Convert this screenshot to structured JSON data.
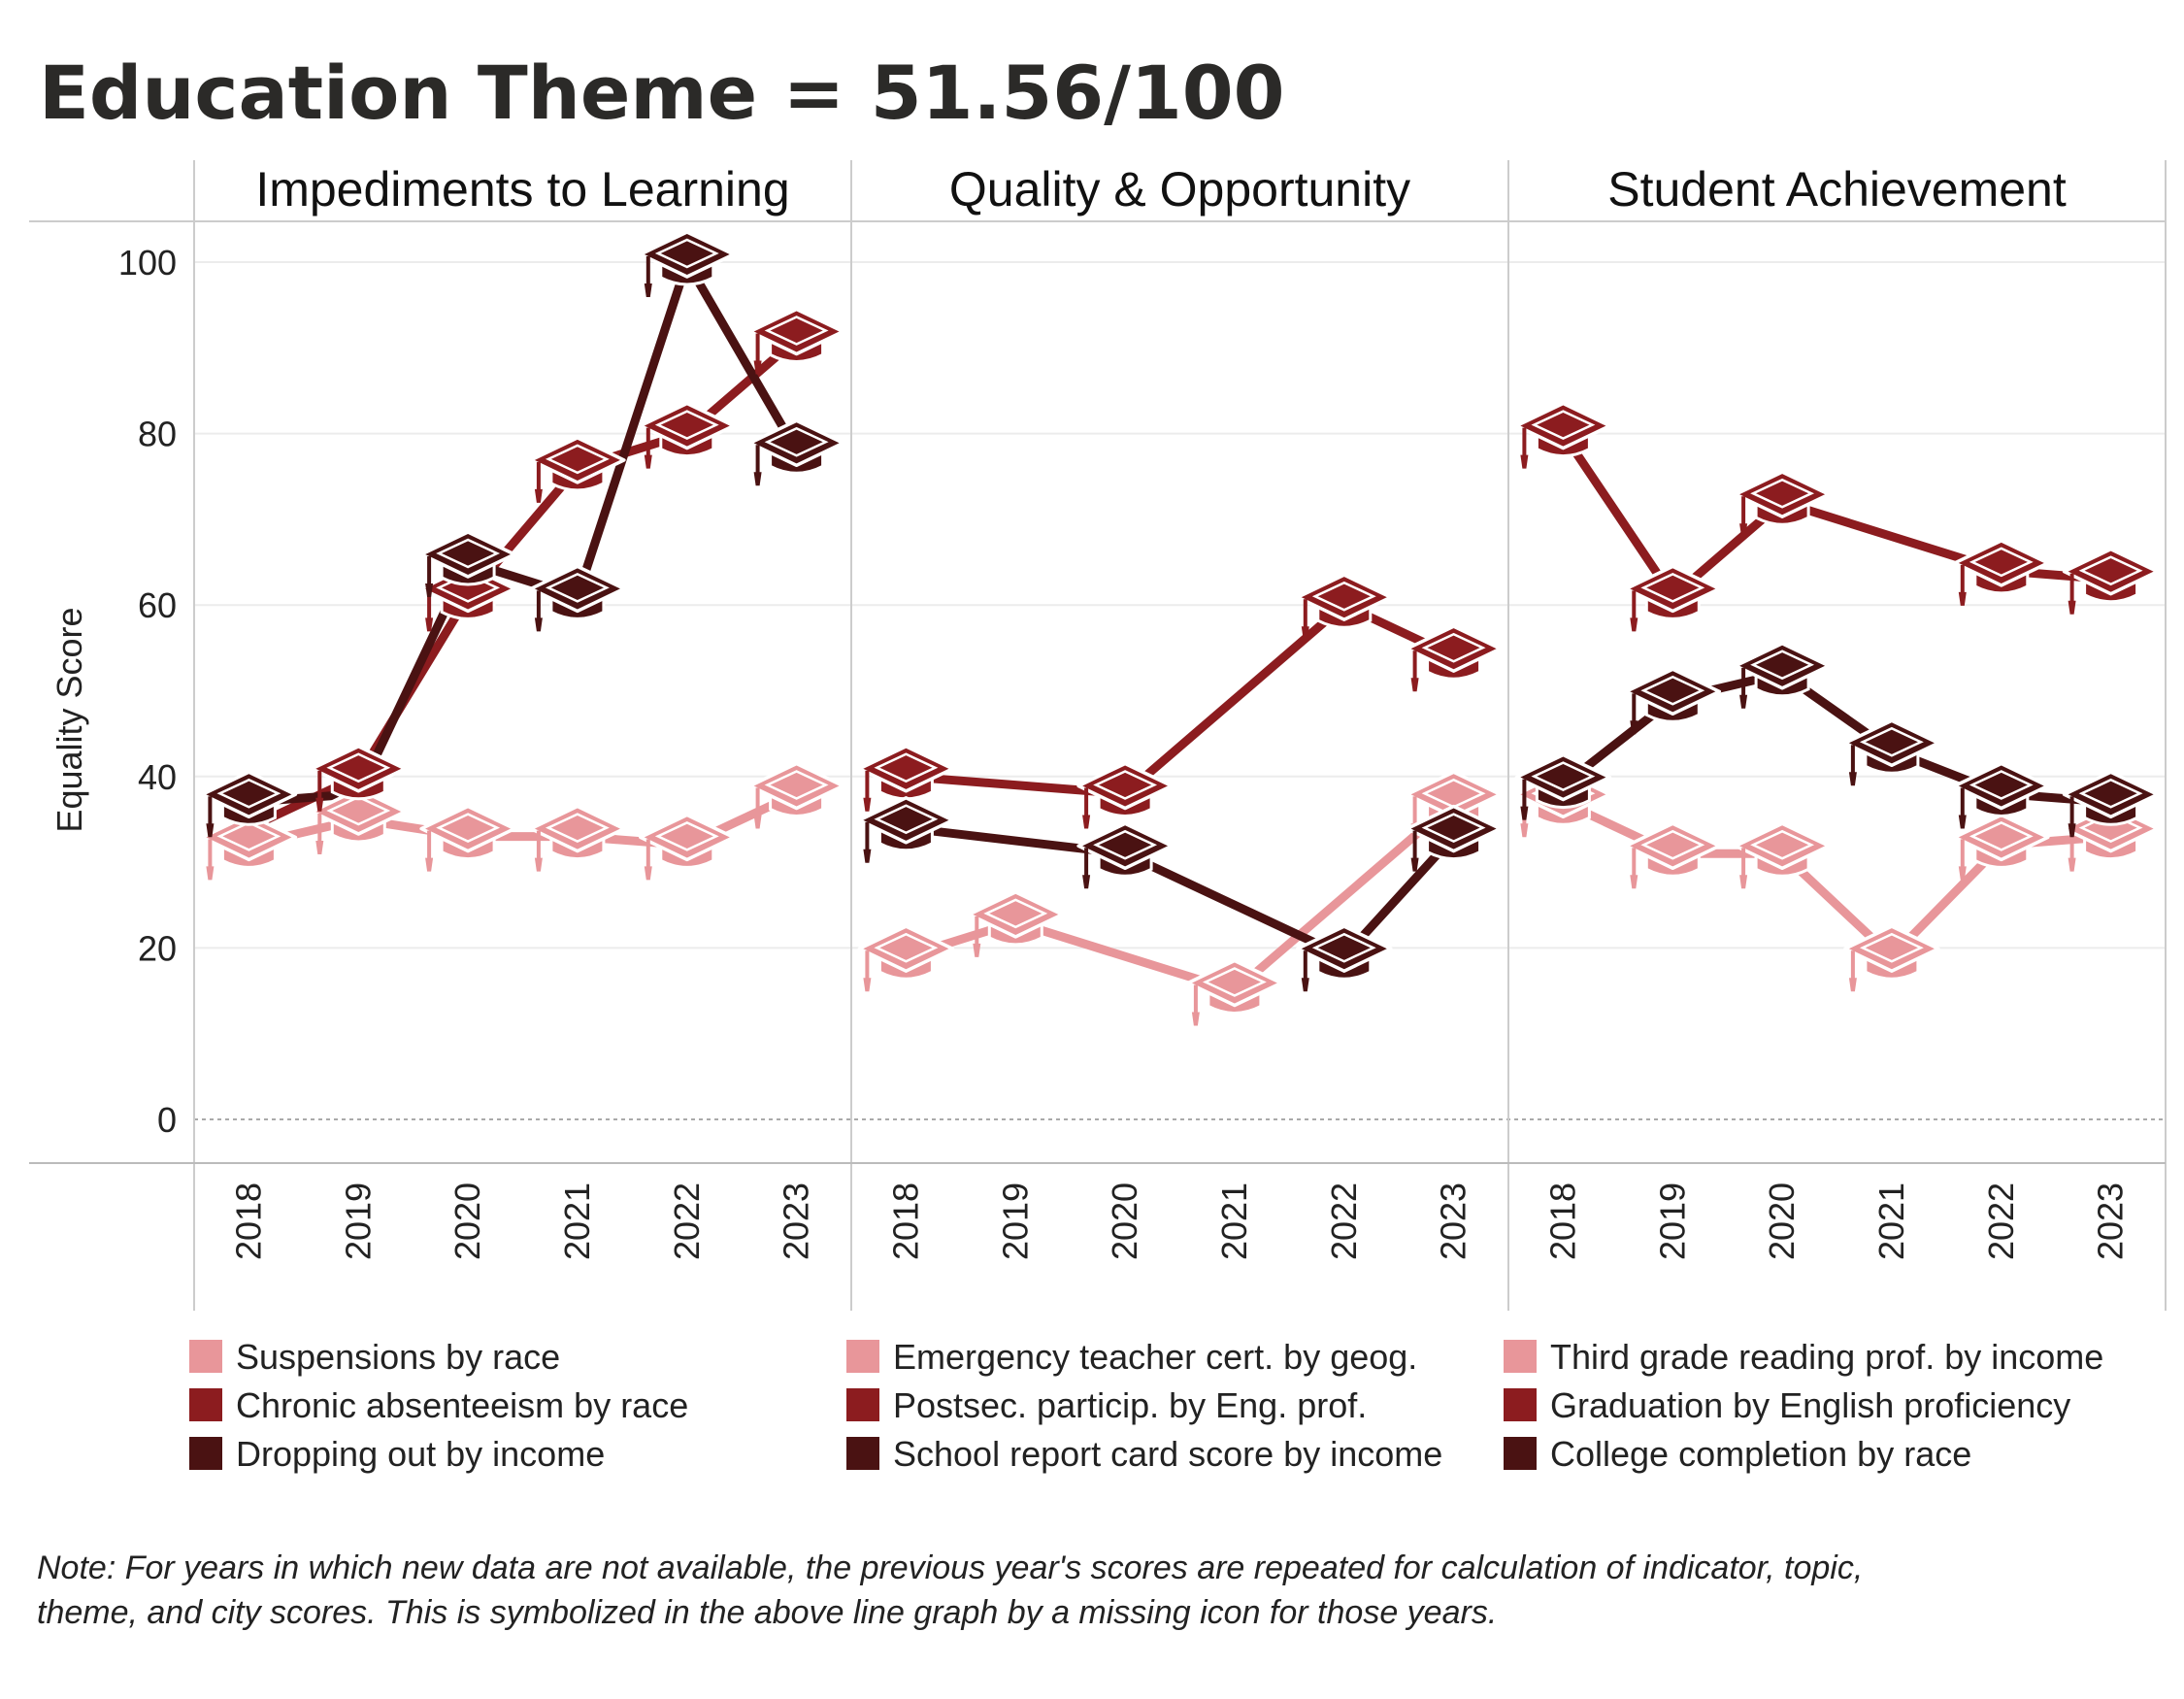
{
  "title": "Education Theme = 51.56/100",
  "note": [
    "Note: For years in which new data are not available, the previous year's scores are repeated for calculation of indicator, topic,",
    "theme, and city scores. This is symbolized in the above line graph by a missing icon for those years."
  ],
  "colors": {
    "light": "#e8969a",
    "mid": "#8c1c1f",
    "dark": "#4a1212"
  },
  "chart_data": {
    "type": "line",
    "ylabel": "Equality Score",
    "ylim": [
      0,
      100
    ],
    "yticks": [
      0,
      20,
      40,
      60,
      80,
      100
    ],
    "x": [
      "2018",
      "2019",
      "2020",
      "2021",
      "2022",
      "2023"
    ],
    "panels": [
      {
        "title": "Impediments to Learning",
        "series": [
          {
            "name": "Suspensions by race",
            "color": "light",
            "values": [
              32,
              35,
              33,
              33,
              32,
              38
            ],
            "icons": [
              true,
              true,
              true,
              true,
              true,
              true
            ]
          },
          {
            "name": "Chronic absenteeism by race",
            "color": "mid",
            "values": [
              34,
              40,
              61,
              76,
              80,
              91
            ],
            "icons": [
              false,
              true,
              true,
              true,
              true,
              true
            ]
          },
          {
            "name": "Dropping out by income",
            "color": "dark",
            "values": [
              37,
              38,
              65,
              61,
              100,
              78
            ],
            "icons": [
              true,
              false,
              true,
              true,
              true,
              true
            ]
          }
        ]
      },
      {
        "title": "Quality & Opportunity",
        "series": [
          {
            "name": "Emergency teacher cert. by geog.",
            "color": "light",
            "values": [
              19,
              23,
              null,
              15,
              null,
              37
            ],
            "icons": [
              true,
              true,
              false,
              true,
              false,
              true
            ]
          },
          {
            "name": "Postsec. particip. by Eng. prof.",
            "color": "mid",
            "values": [
              40,
              null,
              38,
              null,
              60,
              54
            ],
            "icons": [
              true,
              false,
              true,
              false,
              true,
              true
            ]
          },
          {
            "name": "School report card score by income",
            "color": "dark",
            "values": [
              34,
              null,
              31,
              null,
              19,
              33
            ],
            "icons": [
              true,
              false,
              true,
              false,
              true,
              true
            ]
          }
        ]
      },
      {
        "title": "Student Achievement",
        "series": [
          {
            "name": "Third grade reading prof. by income",
            "color": "light",
            "values": [
              37,
              31,
              31,
              19,
              32,
              33
            ],
            "icons": [
              true,
              true,
              true,
              true,
              true,
              true
            ]
          },
          {
            "name": "Graduation by English proficiency",
            "color": "mid",
            "values": [
              80,
              61,
              72,
              null,
              64,
              63
            ],
            "icons": [
              true,
              true,
              true,
              false,
              true,
              true
            ]
          },
          {
            "name": "College completion by race",
            "color": "dark",
            "values": [
              39,
              49,
              52,
              43,
              38,
              37
            ],
            "icons": [
              true,
              true,
              true,
              true,
              true,
              true
            ]
          }
        ]
      }
    ]
  }
}
